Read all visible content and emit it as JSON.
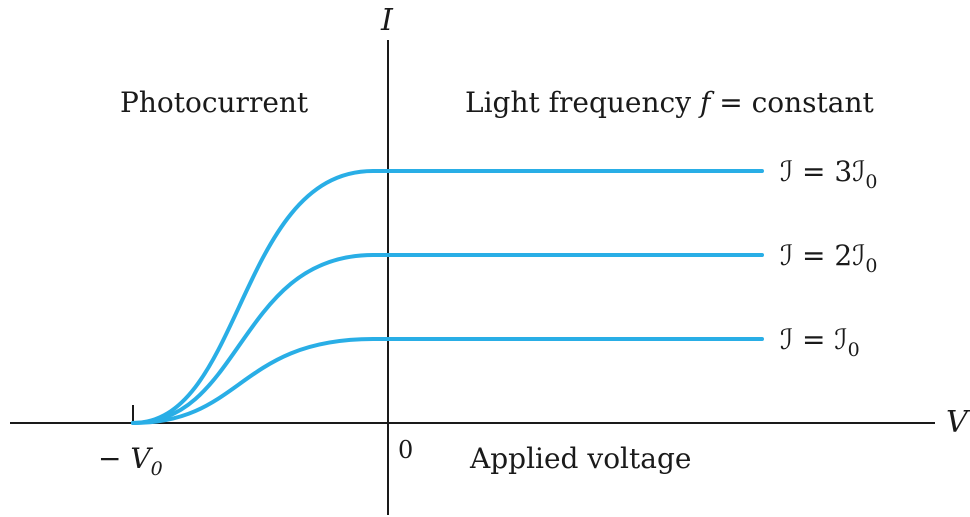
{
  "chart_data": {
    "type": "line",
    "x_axis_symbol": "V",
    "y_axis_symbol": "I",
    "ylabel_text": "Photocurrent",
    "xlabel_text": "Applied voltage",
    "annotation": {
      "prefix": "Light frequency ",
      "symbol": "f",
      "suffix": " = constant"
    },
    "tick_labels": {
      "neg_stop": "− V",
      "neg_stop_sub": "0",
      "origin": "0"
    },
    "x_range": {
      "stopping_voltage": -1.0,
      "max": 1.45
    },
    "series": [
      {
        "name": "ℐ = 3ℐ",
        "sub": "0",
        "intensity_multiple": 3,
        "plateau": 3
      },
      {
        "name": "ℐ = 2ℐ",
        "sub": "0",
        "intensity_multiple": 2,
        "plateau": 2
      },
      {
        "name": "ℐ = ℐ",
        "sub": "0",
        "intensity_multiple": 1,
        "plateau": 1
      }
    ],
    "colors": {
      "curve": "#29aee6",
      "axis": "#1a1a1a"
    }
  }
}
